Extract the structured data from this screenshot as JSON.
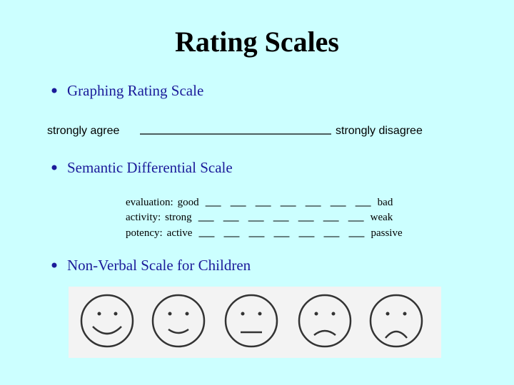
{
  "title": "Rating Scales",
  "graphing": {
    "heading": "Graphing Rating Scale",
    "left": "strongly agree",
    "right": "strongly disagree"
  },
  "semantic": {
    "heading": "Semantic Differential Scale",
    "rows": [
      {
        "label": "evaluation:",
        "left": "good",
        "right": "bad"
      },
      {
        "label": "activity:",
        "left": "strong",
        "right": "weak"
      },
      {
        "label": "potency:",
        "left": "active",
        "right": "passive"
      }
    ]
  },
  "nonverbal": {
    "heading": "Non-Verbal Scale for Children"
  }
}
